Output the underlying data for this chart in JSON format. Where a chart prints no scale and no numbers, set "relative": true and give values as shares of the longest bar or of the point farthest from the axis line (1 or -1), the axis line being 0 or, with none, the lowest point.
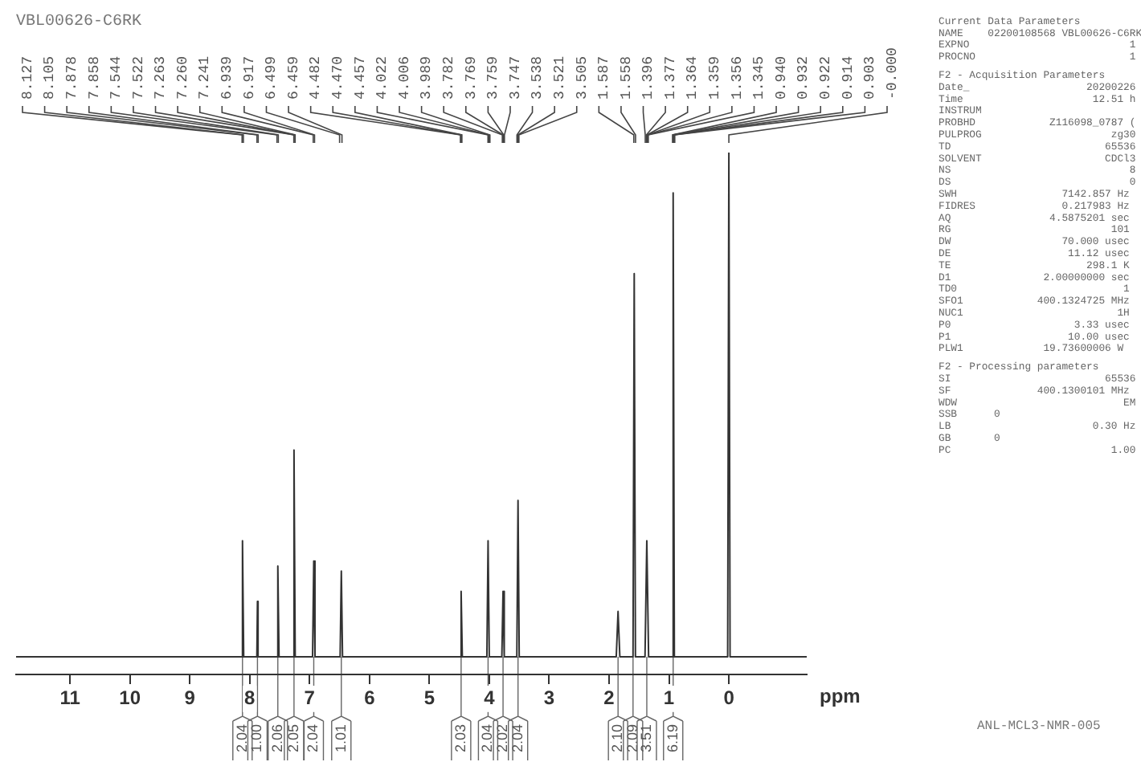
{
  "chart_data": {
    "type": "line",
    "title": "VBL00626-C6RK",
    "subtitle": "ANL-MCL3-NMR-005",
    "xlabel": "ppm",
    "relative": true,
    "grid": false,
    "legend": false,
    "marker": "none",
    "line_style": "solid",
    "xlim": [
      11.9,
      -1.3
    ],
    "xticks": [
      11,
      10,
      9,
      8,
      7,
      6,
      5,
      4,
      3,
      2,
      1,
      0
    ],
    "series": [
      {
        "color": "#333333",
        "x": [
          11.9,
          8.14,
          8.12,
          8.1,
          7.88,
          7.87,
          7.86,
          7.55,
          7.53,
          7.51,
          7.28,
          7.26,
          7.24,
          6.95,
          6.93,
          6.91,
          6.49,
          6.47,
          6.45,
          4.49,
          4.47,
          4.45,
          4.04,
          4.02,
          4.0,
          3.79,
          3.77,
          3.75,
          3.54,
          3.52,
          3.5,
          1.88,
          1.85,
          1.82,
          1.6,
          1.58,
          1.56,
          1.4,
          1.37,
          1.34,
          0.95,
          0.93,
          0.91,
          0.02,
          0.0,
          -0.02,
          -1.3
        ],
        "values": [
          0,
          0,
          0.23,
          0,
          0,
          0.11,
          0,
          0,
          0.18,
          0,
          0,
          0.41,
          0,
          0,
          0.19,
          0,
          0,
          0.17,
          0,
          0,
          0.13,
          0,
          0,
          0.23,
          0,
          0,
          0.13,
          0,
          0,
          0.31,
          0,
          0,
          0.09,
          0,
          0,
          0.76,
          0,
          0,
          0.23,
          0,
          0,
          0.92,
          0,
          0,
          1,
          0,
          0
        ]
      }
    ],
    "annotations": [
      {
        "text": "8.127",
        "x": 8.127
      },
      {
        "text": "8.105",
        "x": 8.105
      },
      {
        "text": "7.878",
        "x": 7.878
      },
      {
        "text": "7.858",
        "x": 7.858
      },
      {
        "text": "7.544",
        "x": 7.544
      },
      {
        "text": "7.522",
        "x": 7.522
      },
      {
        "text": "7.263",
        "x": 7.263
      },
      {
        "text": "7.260",
        "x": 7.26
      },
      {
        "text": "7.241",
        "x": 7.241
      },
      {
        "text": "6.939",
        "x": 6.939
      },
      {
        "text": "6.917",
        "x": 6.917
      },
      {
        "text": "6.499",
        "x": 6.499
      },
      {
        "text": "6.459",
        "x": 6.459
      },
      {
        "text": "4.482",
        "x": 4.482
      },
      {
        "text": "4.470",
        "x": 4.47
      },
      {
        "text": "4.457",
        "x": 4.457
      },
      {
        "text": "4.022",
        "x": 4.022
      },
      {
        "text": "4.006",
        "x": 4.006
      },
      {
        "text": "3.989",
        "x": 3.989
      },
      {
        "text": "3.782",
        "x": 3.782
      },
      {
        "text": "3.769",
        "x": 3.769
      },
      {
        "text": "3.759",
        "x": 3.759
      },
      {
        "text": "3.747",
        "x": 3.747
      },
      {
        "text": "3.538",
        "x": 3.538
      },
      {
        "text": "3.521",
        "x": 3.521
      },
      {
        "text": "3.505",
        "x": 3.505
      },
      {
        "text": "1.587",
        "x": 1.587
      },
      {
        "text": "1.558",
        "x": 1.558
      },
      {
        "text": "1.396",
        "x": 1.396
      },
      {
        "text": "1.377",
        "x": 1.377
      },
      {
        "text": "1.364",
        "x": 1.364
      },
      {
        "text": "1.359",
        "x": 1.359
      },
      {
        "text": "1.356",
        "x": 1.356
      },
      {
        "text": "1.345",
        "x": 1.345
      },
      {
        "text": "0.940",
        "x": 0.94
      },
      {
        "text": "0.932",
        "x": 0.932
      },
      {
        "text": "0.922",
        "x": 0.922
      },
      {
        "text": "0.914",
        "x": 0.914
      },
      {
        "text": "0.903",
        "x": 0.903
      },
      {
        "text": "-0.000",
        "x": 0
      },
      {
        "text": "2.04",
        "x": 8.12,
        "y": 0
      },
      {
        "text": "1.00",
        "x": 7.87,
        "y": 0
      },
      {
        "text": "2.06",
        "x": 7.53,
        "y": 0
      },
      {
        "text": "2.05",
        "x": 7.26,
        "y": 0
      },
      {
        "text": "2.04",
        "x": 6.93,
        "y": 0
      },
      {
        "text": "1.01",
        "x": 6.47,
        "y": 0
      },
      {
        "text": "2.03",
        "x": 4.47,
        "y": 0
      },
      {
        "text": "2.04",
        "x": 4.02,
        "y": 0
      },
      {
        "text": "2.02",
        "x": 3.77,
        "y": 0
      },
      {
        "text": "2.04",
        "x": 3.52,
        "y": 0
      },
      {
        "text": "2.10",
        "x": 1.85,
        "y": 0
      },
      {
        "text": "2.09",
        "x": 1.6,
        "y": 0
      },
      {
        "text": "3.51",
        "x": 1.37,
        "y": 0
      },
      {
        "text": "6.19",
        "x": 0.93,
        "y": 0
      },
      "Current Data Parameters",
      "NAME    02200108568 VBL00626-C6RK",
      "EXPNO                          1",
      "PROCNO                         1",
      "F2 - Acquisition Parameters",
      "Date_                   20200226",
      "Time                     12.51 h",
      "INSTRUM",
      "PROBHD            Z116098_0787 (",
      "PULPROG                     zg30",
      "TD                         65536",
      "SOLVENT                    CDCl3",
      "NS                             8",
      "DS                             0",
      "SWH                 7142.857 Hz",
      "FIDRES              0.217983 Hz",
      "AQ                4.5875201 sec",
      "RG                          101",
      "DW                  70.000 usec",
      "DE                   11.12 usec",
      "TE                      298.1 K",
      "D1               2.00000000 sec",
      "TD0                           1",
      "SFO1            400.1324725 MHz",
      "NUC1                         1H",
      "P0                    3.33 usec",
      "P1                   10.00 usec",
      "PLW1             19.73600006 W",
      "F2 - Processing parameters",
      "SI                         65536",
      "SF              400.1300101 MHz",
      "WDW                           EM",
      "SSB      0",
      "LB                       0.30 Hz",
      "GB       0",
      "PC                          1.00"
    ]
  }
}
